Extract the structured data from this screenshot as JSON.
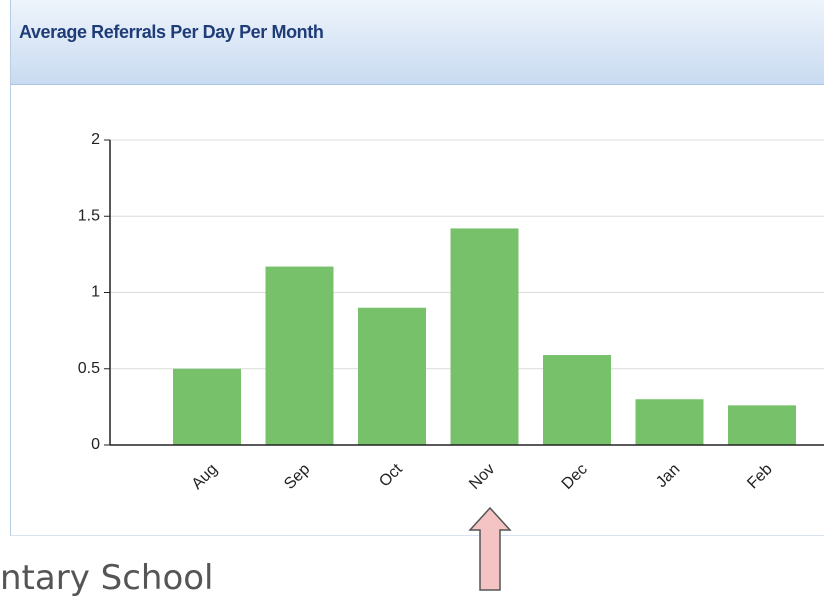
{
  "chart_data": {
    "type": "bar",
    "title": "Average Referrals Per Day Per Month",
    "categories": [
      "Aug",
      "Sep",
      "Oct",
      "Nov",
      "Dec",
      "Jan",
      "Feb"
    ],
    "values": [
      0.5,
      1.17,
      0.9,
      1.42,
      0.59,
      0.3,
      0.26
    ],
    "color": "#77c16a",
    "ylim": [
      0,
      2
    ],
    "yticks": [
      0,
      0.5,
      1,
      1.5,
      2
    ],
    "grid": true
  },
  "background_text": "ntary School"
}
